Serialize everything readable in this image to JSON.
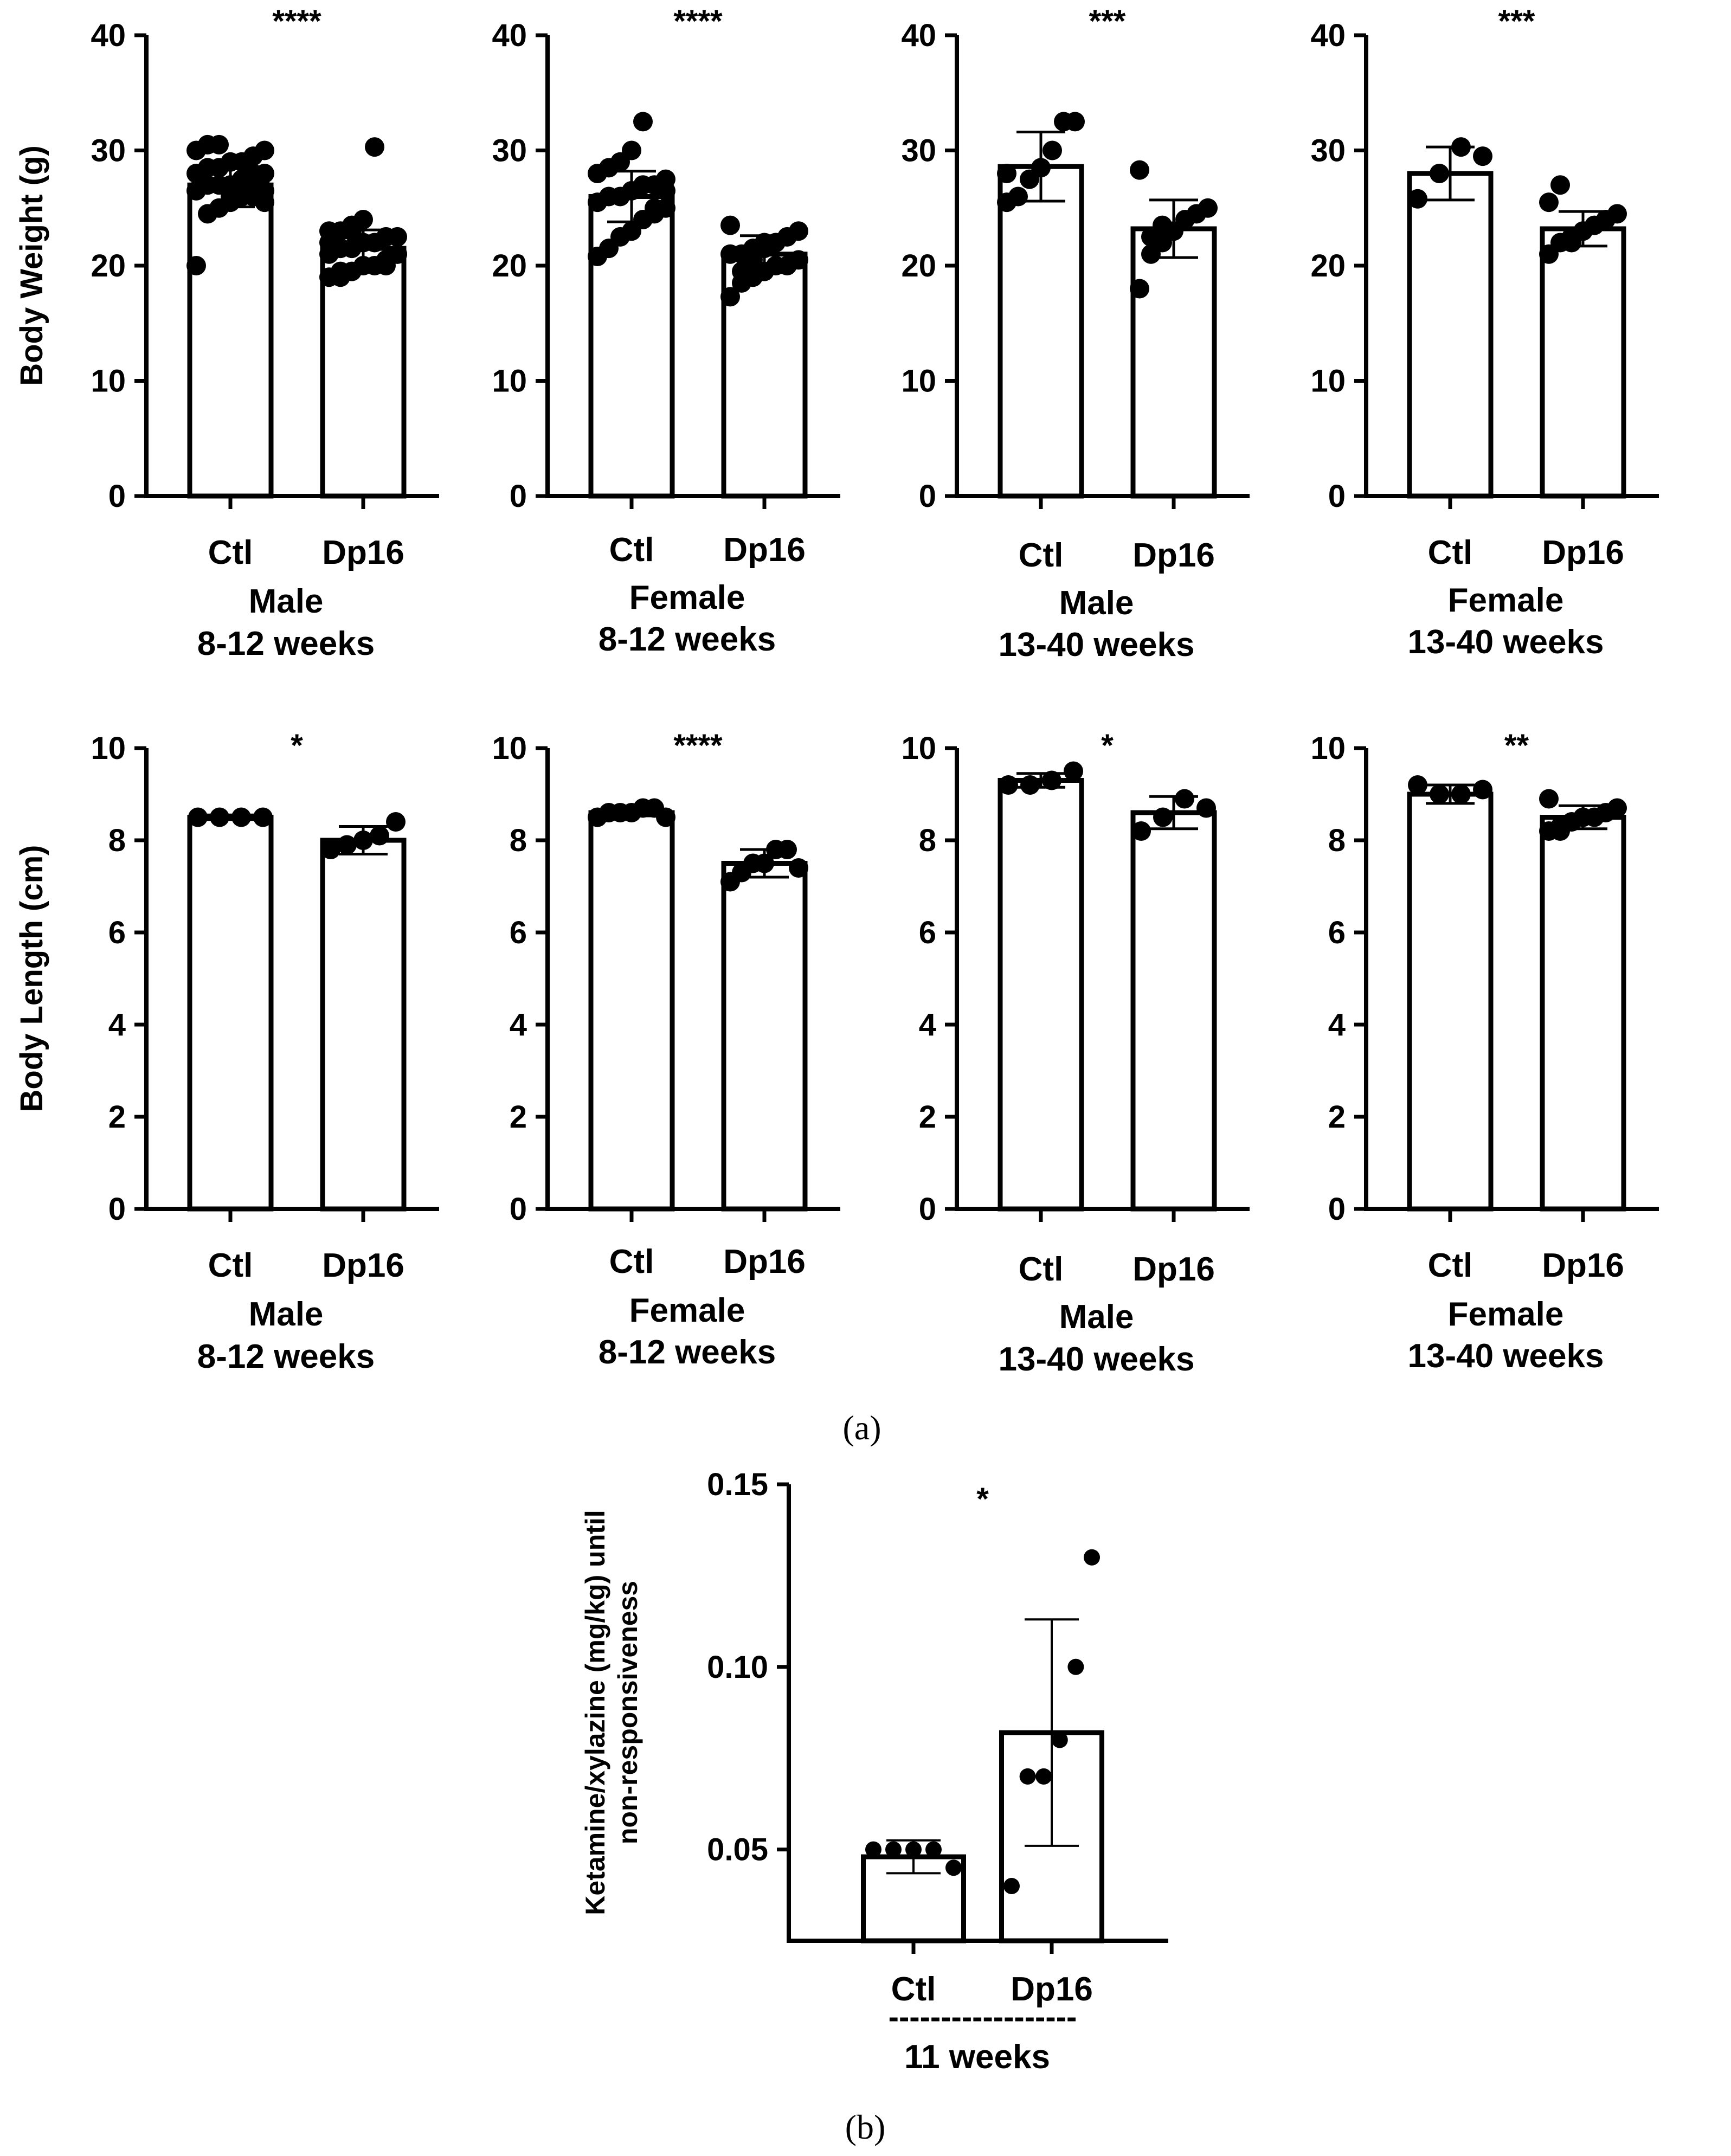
{
  "figure": {
    "panel_a_label": "(a)",
    "panel_b_label": "(b)"
  },
  "chart_data": [
    {
      "id": "bw-male-8-12",
      "type": "bar",
      "ylabel": "Body Weight (g)",
      "ylim": [
        0,
        40
      ],
      "yticks": [
        0,
        10,
        20,
        30,
        40
      ],
      "categories": [
        "Ctl",
        "Dp16"
      ],
      "group_lines": [
        "Male",
        "8-12 weeks"
      ],
      "significance": "****",
      "bars": [
        {
          "mean": 27.0,
          "sd": 1.9,
          "points": [
            20.0,
            24.5,
            25.0,
            25.5,
            26.0,
            26.0,
            26.5,
            26.5,
            27.0,
            27.0,
            27.0,
            27.5,
            27.5,
            28.0,
            28.0,
            28.5,
            28.5,
            29.0,
            29.0,
            29.5,
            30.0,
            30.0,
            30.5,
            30.5,
            26.0,
            27.0,
            28.0,
            25.5
          ]
        },
        {
          "mean": 21.5,
          "sd": 1.6,
          "points": [
            19.0,
            19.5,
            19.5,
            20.0,
            20.0,
            20.5,
            21.0,
            21.0,
            21.5,
            21.5,
            22.0,
            22.0,
            22.5,
            22.5,
            23.0,
            23.0,
            23.5,
            24.0,
            30.3,
            20.0,
            21.0,
            22.0,
            19.0,
            23.0
          ]
        }
      ]
    },
    {
      "id": "bw-female-8-12",
      "type": "bar",
      "ylabel": "",
      "ylim": [
        0,
        40
      ],
      "yticks": [
        0,
        10,
        20,
        30,
        40
      ],
      "categories": [
        "Ctl",
        "Dp16"
      ],
      "group_lines": [
        "Female",
        "8-12 weeks"
      ],
      "significance": "****",
      "bars": [
        {
          "mean": 26.0,
          "sd": 2.2,
          "points": [
            20.8,
            21.5,
            22.5,
            23.0,
            24.0,
            24.5,
            25.0,
            25.5,
            26.0,
            26.0,
            26.5,
            27.0,
            27.0,
            27.5,
            28.0,
            28.5,
            29.0,
            30.0,
            32.5,
            25.0,
            26.5
          ]
        },
        {
          "mean": 21.0,
          "sd": 1.6,
          "points": [
            17.3,
            18.5,
            19.0,
            19.5,
            20.0,
            20.0,
            20.5,
            21.0,
            21.0,
            21.5,
            22.0,
            22.0,
            22.5,
            23.0,
            23.5,
            19.5,
            20.5,
            21.5
          ]
        }
      ]
    },
    {
      "id": "bw-male-13-40",
      "type": "bar",
      "ylabel": "",
      "ylim": [
        0,
        40
      ],
      "yticks": [
        0,
        10,
        20,
        30,
        40
      ],
      "categories": [
        "Ctl",
        "Dp16"
      ],
      "group_lines": [
        "Male",
        "13-40 weeks"
      ],
      "significance": "***",
      "bars": [
        {
          "mean": 28.6,
          "sd": 3.0,
          "points": [
            25.5,
            26.0,
            27.5,
            28.5,
            30.0,
            32.5,
            32.5,
            28.0
          ]
        },
        {
          "mean": 23.2,
          "sd": 2.5,
          "points": [
            18.0,
            21.0,
            22.0,
            23.0,
            24.0,
            24.5,
            25.0,
            28.3,
            22.5,
            23.5
          ]
        }
      ]
    },
    {
      "id": "bw-female-13-40",
      "type": "bar",
      "ylabel": "",
      "ylim": [
        0,
        40
      ],
      "yticks": [
        0,
        10,
        20,
        30,
        40
      ],
      "categories": [
        "Ctl",
        "Dp16"
      ],
      "group_lines": [
        "Female",
        "13-40 weeks"
      ],
      "significance": "***",
      "bars": [
        {
          "mean": 28.0,
          "sd": 2.3,
          "points": [
            25.8,
            28.0,
            30.3,
            29.5
          ]
        },
        {
          "mean": 23.2,
          "sd": 1.5,
          "points": [
            21.0,
            22.0,
            22.5,
            23.0,
            23.5,
            24.0,
            24.5,
            25.5,
            27.0,
            22.0,
            23.0
          ]
        }
      ]
    },
    {
      "id": "bl-male-8-12",
      "type": "bar",
      "ylabel": "Body Length (cm)",
      "ylim": [
        0,
        10
      ],
      "yticks": [
        0,
        2,
        4,
        6,
        8,
        10
      ],
      "categories": [
        "Ctl",
        "Dp16"
      ],
      "group_lines": [
        "Male",
        "8-12 weeks"
      ],
      "significance": "*",
      "bars": [
        {
          "mean": 8.5,
          "sd": 0.05,
          "points": [
            8.5,
            8.5,
            8.5,
            8.5
          ]
        },
        {
          "mean": 8.0,
          "sd": 0.3,
          "points": [
            7.8,
            7.9,
            8.0,
            8.1,
            8.4
          ]
        }
      ]
    },
    {
      "id": "bl-female-8-12",
      "type": "bar",
      "ylabel": "",
      "ylim": [
        0,
        10
      ],
      "yticks": [
        0,
        2,
        4,
        6,
        8,
        10
      ],
      "categories": [
        "Ctl",
        "Dp16"
      ],
      "group_lines": [
        "Female",
        "8-12 weeks"
      ],
      "significance": "****",
      "bars": [
        {
          "mean": 8.6,
          "sd": 0.07,
          "points": [
            8.5,
            8.6,
            8.6,
            8.6,
            8.7,
            8.7,
            8.5
          ]
        },
        {
          "mean": 7.5,
          "sd": 0.3,
          "points": [
            7.1,
            7.3,
            7.5,
            7.5,
            7.8,
            7.8,
            7.4
          ]
        }
      ]
    },
    {
      "id": "bl-male-13-40",
      "type": "bar",
      "ylabel": "",
      "ylim": [
        0,
        10
      ],
      "yticks": [
        0,
        2,
        4,
        6,
        8,
        10
      ],
      "categories": [
        "Ctl",
        "Dp16"
      ],
      "group_lines": [
        "Male",
        "13-40 weeks"
      ],
      "significance": "*",
      "bars": [
        {
          "mean": 9.3,
          "sd": 0.15,
          "points": [
            9.2,
            9.2,
            9.3,
            9.5
          ]
        },
        {
          "mean": 8.6,
          "sd": 0.35,
          "points": [
            8.2,
            8.5,
            8.9,
            8.7
          ]
        }
      ]
    },
    {
      "id": "bl-female-13-40",
      "type": "bar",
      "ylabel": "",
      "ylim": [
        0,
        10
      ],
      "yticks": [
        0,
        2,
        4,
        6,
        8,
        10
      ],
      "categories": [
        "Ctl",
        "Dp16"
      ],
      "group_lines": [
        "Female",
        "13-40 weeks"
      ],
      "significance": "**",
      "bars": [
        {
          "mean": 9.0,
          "sd": 0.2,
          "points": [
            9.2,
            9.0,
            9.0,
            9.1
          ]
        },
        {
          "mean": 8.5,
          "sd": 0.25,
          "points": [
            8.2,
            8.3,
            8.4,
            8.5,
            8.5,
            8.6,
            8.7,
            8.9,
            8.2
          ]
        }
      ]
    },
    {
      "id": "ketamine-11-weeks",
      "type": "bar",
      "ylabel_lines": [
        "Ketamine/xylazine (mg/kg) until",
        "non-responsiveness"
      ],
      "ylim": [
        0.025,
        0.15
      ],
      "yticks": [
        0.05,
        0.1,
        0.15
      ],
      "ytick_labels": [
        "0.05",
        "0.10",
        "0.15"
      ],
      "categories": [
        "Ctl",
        "Dp16"
      ],
      "group_divider": "------------------",
      "group_lines": [
        "11 weeks"
      ],
      "significance": "*",
      "bars": [
        {
          "mean": 0.048,
          "sd": 0.0045,
          "points": [
            0.05,
            0.05,
            0.05,
            0.05,
            0.045
          ]
        },
        {
          "mean": 0.082,
          "sd": 0.031,
          "points": [
            0.04,
            0.07,
            0.07,
            0.08,
            0.1,
            0.13
          ]
        }
      ]
    }
  ]
}
